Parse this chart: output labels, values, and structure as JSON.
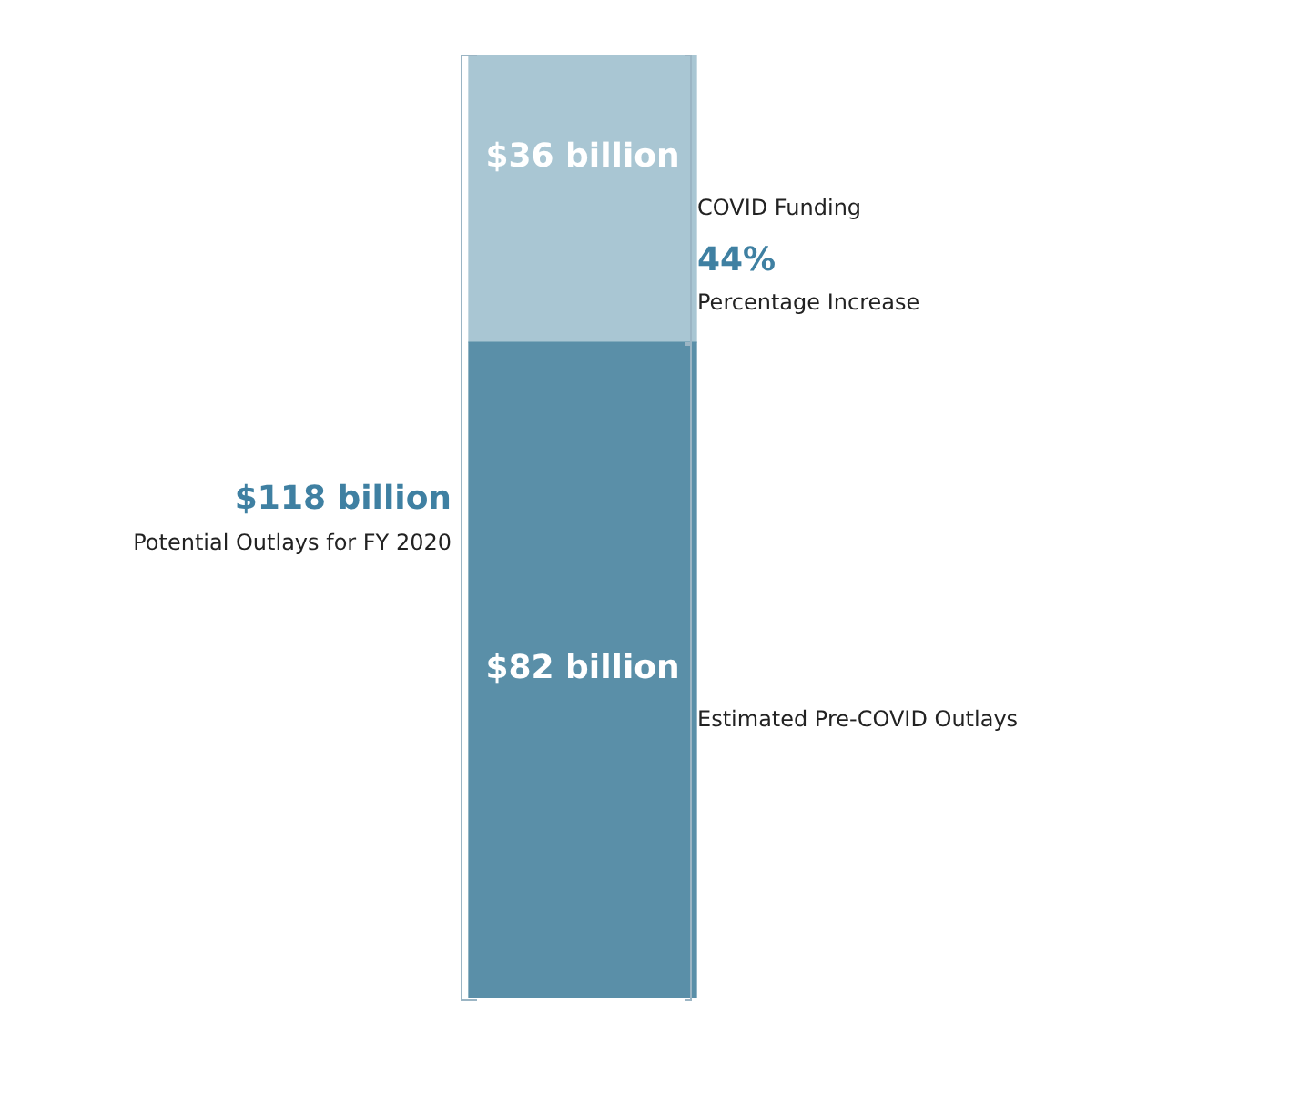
{
  "chart_data": {
    "type": "bar",
    "stacked": true,
    "categories": [
      null
    ],
    "series": [
      {
        "name": "Estimated Pre-COVID Outlays",
        "color": "#5a8fa8",
        "values": [
          82
        ],
        "value_labels": [
          "$82 billion"
        ]
      },
      {
        "name": "COVID Funding",
        "color": "#a9c6d3",
        "values": [
          36
        ],
        "value_labels": [
          "$36 billion"
        ]
      }
    ],
    "totals": [
      "$118 billion"
    ],
    "annotations": [
      "44%",
      "Percentage Increase",
      "Potential Outlays for FY 2020"
    ]
  }
}
